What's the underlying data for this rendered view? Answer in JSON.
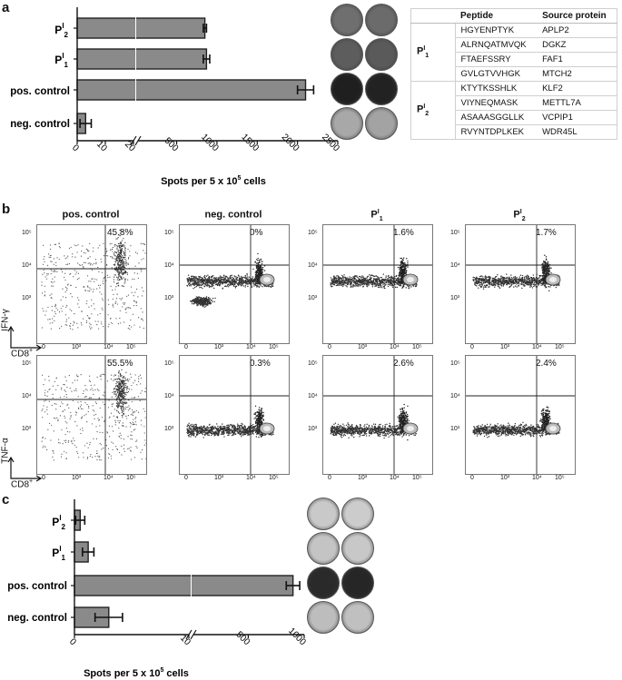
{
  "panel_a": {
    "label": "a",
    "chart_data": {
      "type": "bar",
      "orientation": "horizontal",
      "axis_break": true,
      "categories": [
        "P^I_2",
        "P^I_1",
        "pos. control",
        "neg. control"
      ],
      "values": [
        850,
        870,
        2100,
        3
      ],
      "errors": [
        20,
        40,
        100,
        2
      ],
      "xlabel": "Spots per 5 x 10^5 cells",
      "xticks": [
        "0",
        "10",
        "20",
        "500",
        "1000",
        "1500",
        "2000",
        "2500"
      ]
    },
    "tick_labels": [
      "0",
      "10",
      "20",
      "500",
      "1000",
      "1500",
      "2000",
      "2500"
    ],
    "xlabel": "Spots per 5 x 10",
    "xlabel_exp": "5",
    "xlabel_tail": " cells",
    "wells": [
      {
        "color": "#6f6f6f"
      },
      {
        "color": "#6b6b6b"
      },
      {
        "color": "#5d5d5d"
      },
      {
        "color": "#5a5a5a"
      },
      {
        "color": "#1f1f1f"
      },
      {
        "color": "#222222"
      },
      {
        "color": "#a8a8a8"
      },
      {
        "color": "#a3a3a3"
      }
    ]
  },
  "cat_labels": {
    "p2_main": "P",
    "p2_sup": "I",
    "p2_sub": "2",
    "p1_main": "P",
    "p1_sup": "I",
    "p1_sub": "1",
    "pos": "pos. control",
    "neg": "neg. control"
  },
  "table": {
    "headers": [
      "",
      "Peptide",
      "Source protein"
    ],
    "groups": [
      {
        "main": "P",
        "sup": "I",
        "sub": "1",
        "rows": [
          [
            "HGYENPTYK",
            "APLP2"
          ],
          [
            "ALRNQATMVQK",
            "DGKZ"
          ],
          [
            "FTAEFSSRY",
            "FAF1"
          ],
          [
            "GVLGTVVHGK",
            "MTCH2"
          ]
        ]
      },
      {
        "main": "P",
        "sup": "I",
        "sub": "2",
        "rows": [
          [
            "KTYTKSSHLK",
            "KLF2"
          ],
          [
            "VIYNEQMASK",
            "METTL7A"
          ],
          [
            "ASAAASGGLLK",
            "VCPIP1"
          ],
          [
            "RVYNTDPLKEK",
            "WDR45L"
          ]
        ]
      }
    ]
  },
  "panel_b": {
    "label": "b",
    "titles": [
      "pos. control",
      "neg. control",
      "P",
      "P"
    ],
    "title_sups": [
      "",
      "",
      "I",
      "I"
    ],
    "title_subs": [
      "",
      "",
      "1",
      "2"
    ],
    "row1_pcts": [
      "45.8%",
      "0%",
      "1.6%",
      "1.7%"
    ],
    "row2_pcts": [
      "55.5%",
      "0.3%",
      "2.6%",
      "2.4%"
    ],
    "ylabel_row1": "IFN-γ",
    "ylabel_row2": "TNF-α",
    "xlabel": "CD8",
    "xlabel_sup": "+",
    "yticks": [
      "10⁵",
      "10⁴",
      "10³"
    ],
    "xticks": [
      "0",
      "10³",
      "10⁴",
      "10⁵"
    ]
  },
  "panel_c": {
    "label": "c",
    "chart_data": {
      "type": "bar",
      "orientation": "horizontal",
      "axis_break": true,
      "categories": [
        "P^I_2",
        "P^I_1",
        "pos. control",
        "neg. control"
      ],
      "values": [
        0.5,
        1.2,
        900,
        3
      ],
      "errors": [
        0.4,
        0.5,
        60,
        1.2
      ],
      "xlabel": "Spots per 5 x 10^5 cells",
      "xticks": [
        "0",
        "10",
        "500",
        "1000"
      ]
    },
    "tick_labels": [
      "0",
      "10",
      "500",
      "1000"
    ],
    "xlabel": "Spots per 5 x 10",
    "xlabel_exp": "5",
    "xlabel_tail": " cells",
    "wells": [
      {
        "color": "#c9c9c9"
      },
      {
        "color": "#cccccc"
      },
      {
        "color": "#c4c4c4"
      },
      {
        "color": "#c8c8c8"
      },
      {
        "color": "#2a2a2a"
      },
      {
        "color": "#262626"
      },
      {
        "color": "#bdbdbd"
      },
      {
        "color": "#c0c0c0"
      }
    ]
  }
}
